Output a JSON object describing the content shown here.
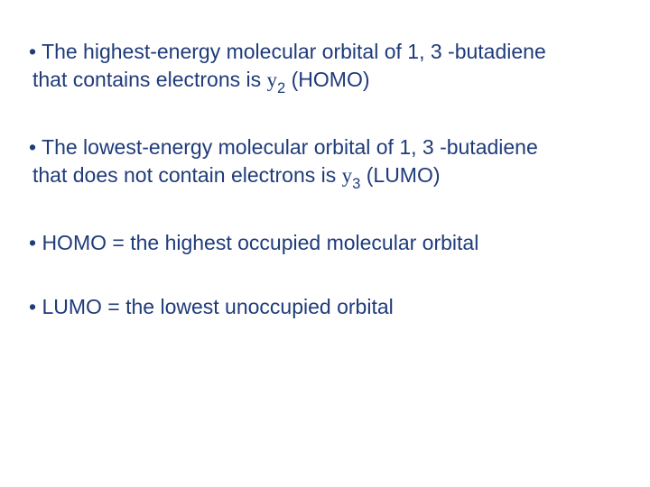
{
  "text_color": "#1f3b7a",
  "bullets": [
    {
      "line1_prefix": "• The highest-energy molecular orbital of 1, 3 -butadiene",
      "line2_prefix": "that contains electrons is ",
      "psi": "y",
      "sub": "2",
      "line2_suffix": " (HOMO)"
    },
    {
      "line1_prefix": "• The lowest-energy molecular orbital of 1, 3 -butadiene",
      "line2_prefix": "that does not contain electrons is ",
      "psi": "y",
      "sub": "3",
      "line2_suffix": " (LUMO)"
    },
    {
      "single": "• HOMO = the highest occupied molecular orbital"
    },
    {
      "single": "• LUMO = the lowest unoccupied orbital"
    }
  ]
}
